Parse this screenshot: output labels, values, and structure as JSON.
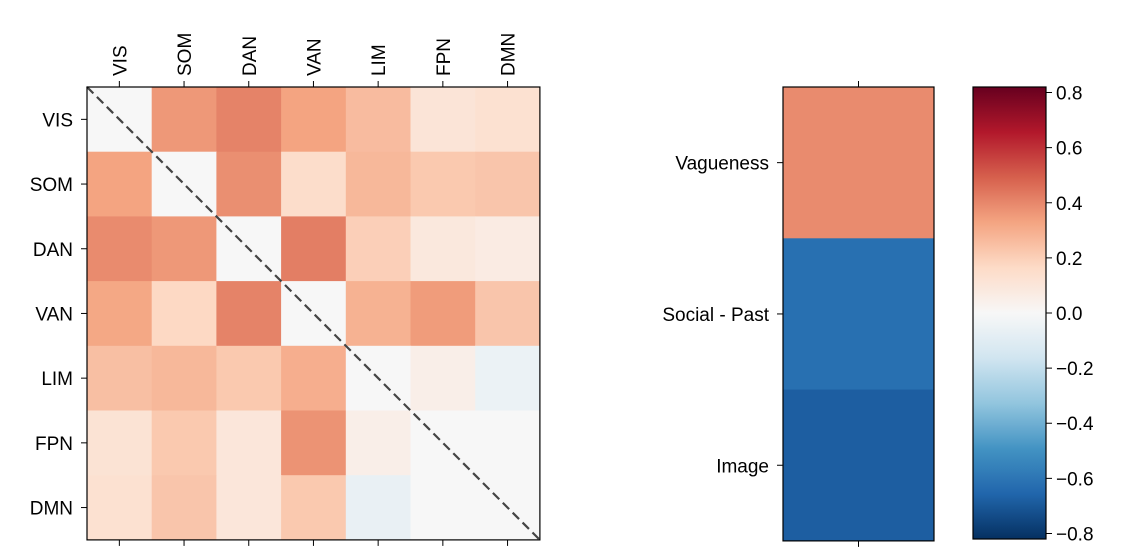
{
  "chart_data": [
    {
      "type": "heatmap",
      "categories": [
        "VIS",
        "SOM",
        "DAN",
        "VAN",
        "LIM",
        "FPN",
        "DMN"
      ],
      "values": [
        [
          0.0,
          0.36,
          0.41,
          0.33,
          0.26,
          0.11,
          0.13
        ],
        [
          0.33,
          0.0,
          0.38,
          0.15,
          0.27,
          0.22,
          0.23
        ],
        [
          0.39,
          0.36,
          0.0,
          0.42,
          0.2,
          0.09,
          0.07
        ],
        [
          0.32,
          0.17,
          0.41,
          0.0,
          0.29,
          0.35,
          0.23
        ],
        [
          0.25,
          0.27,
          0.22,
          0.3,
          0.0,
          0.05,
          -0.05
        ],
        [
          0.12,
          0.22,
          0.1,
          0.37,
          0.05,
          0.0,
          0.0
        ],
        [
          0.13,
          0.23,
          0.1,
          0.22,
          -0.06,
          0.0,
          0.0
        ]
      ],
      "grid": false
    },
    {
      "type": "heatmap",
      "categories": [
        "Vagueness",
        "Social - Past",
        "Image"
      ],
      "values": [
        0.39,
        -0.62,
        -0.68
      ],
      "colorbar": {
        "range": [
          -0.82,
          0.82
        ],
        "ticks": [
          0.8,
          0.6,
          0.4,
          0.2,
          0.0,
          -0.2,
          -0.4,
          -0.6,
          -0.8
        ],
        "tick_labels": [
          "0.8",
          "0.6",
          "0.4",
          "0.2",
          "0.0",
          "−0.2",
          "−0.4",
          "−0.6",
          "−0.8"
        ],
        "colormap": "RdBu_r"
      }
    }
  ]
}
